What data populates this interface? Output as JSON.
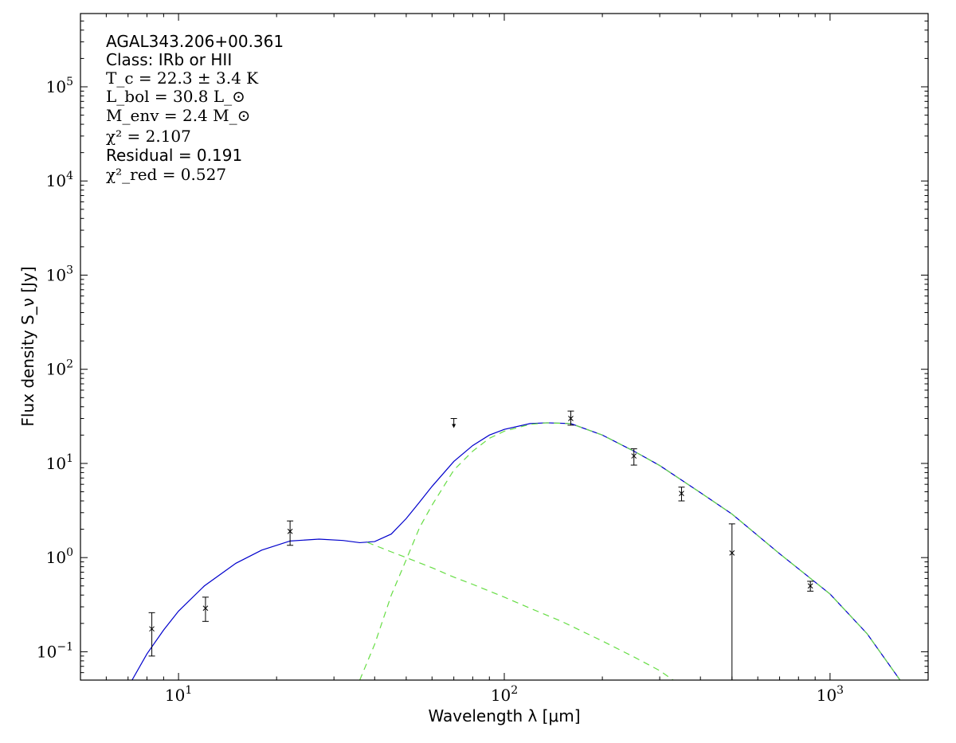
{
  "chart_data": {
    "type": "scatter",
    "xlabel": "Wavelength λ [μm]",
    "ylabel": "Flux density S_ν [Jy]",
    "xscale": "log",
    "yscale": "log",
    "xlim": [
      5,
      2000
    ],
    "ylim": [
      0.05,
      600000
    ],
    "x_ticks": [
      {
        "value": 10,
        "base": "10",
        "exp": "1"
      },
      {
        "value": 100,
        "base": "10",
        "exp": "2"
      },
      {
        "value": 1000,
        "base": "10",
        "exp": "3"
      }
    ],
    "y_ticks": [
      {
        "value": 0.1,
        "base": "10",
        "exp": "−1"
      },
      {
        "value": 1,
        "base": "10",
        "exp": "0"
      },
      {
        "value": 10,
        "base": "10",
        "exp": "1"
      },
      {
        "value": 100,
        "base": "10",
        "exp": "2"
      },
      {
        "value": 1000,
        "base": "10",
        "exp": "3"
      },
      {
        "value": 10000,
        "base": "10",
        "exp": "4"
      },
      {
        "value": 100000,
        "base": "10",
        "exp": "5"
      }
    ],
    "grid": false,
    "annotations": {
      "source_name": "AGAL343.206+00.361",
      "class_text": "Class: IRb or HII",
      "tc_text": "T_c = 22.3 ± 3.4 K",
      "lbol_text": "L_bol = 30.8 L_⊙",
      "menv_text": "M_env = 2.4 M_⊙",
      "chi2_text": "χ² = 2.107",
      "residual_text": "Residual = 0.191",
      "chi2red_text": "χ²_red = 0.527"
    },
    "points": [
      {
        "x": 8.28,
        "y": 0.175,
        "ylo": 0.09,
        "yhi": 0.26
      },
      {
        "x": 12.1,
        "y": 0.29,
        "ylo": 0.21,
        "yhi": 0.38
      },
      {
        "x": 22.0,
        "y": 1.9,
        "ylo": 1.35,
        "yhi": 2.45
      },
      {
        "x": 160,
        "y": 30,
        "ylo": 25.5,
        "yhi": 36
      },
      {
        "x": 250,
        "y": 12,
        "ylo": 9.6,
        "yhi": 14.3
      },
      {
        "x": 350,
        "y": 4.8,
        "ylo": 4.0,
        "yhi": 5.6
      },
      {
        "x": 500,
        "y": 1.12,
        "ylo": 0.05,
        "yhi": 2.28
      },
      {
        "x": 870,
        "y": 0.5,
        "ylo": 0.44,
        "yhi": 0.56
      }
    ],
    "upper_limits": [
      {
        "x": 70,
        "y": 30
      }
    ],
    "series": [
      {
        "style": "solid",
        "color": "#0000cc",
        "x": [
          7.2,
          8,
          9,
          10,
          12,
          15,
          18,
          22,
          27,
          32,
          36,
          40,
          45,
          50,
          55,
          60,
          70,
          80,
          90,
          100,
          120,
          135,
          160,
          200,
          250,
          300,
          400,
          500,
          700,
          1000,
          1300,
          1640
        ],
        "y": [
          0.05,
          0.095,
          0.17,
          0.27,
          0.5,
          0.87,
          1.2,
          1.5,
          1.57,
          1.52,
          1.44,
          1.48,
          1.78,
          2.6,
          3.9,
          5.7,
          10.5,
          15.5,
          20,
          23,
          26.5,
          27,
          26.5,
          20,
          13.5,
          9.5,
          4.9,
          2.9,
          1.1,
          0.41,
          0.155,
          0.05
        ]
      },
      {
        "style": "dashed",
        "color": "#66dd44",
        "x": [
          36,
          40,
          45,
          50,
          55,
          60,
          70,
          80,
          90,
          100,
          120,
          135,
          160,
          200,
          250,
          300,
          400,
          500,
          700,
          1000,
          1300,
          1640
        ],
        "y": [
          0.05,
          0.12,
          0.4,
          0.95,
          2.1,
          3.6,
          8.5,
          13.5,
          18.5,
          22,
          26,
          27,
          26.5,
          20,
          13.5,
          9.5,
          4.9,
          2.9,
          1.1,
          0.41,
          0.155,
          0.05
        ]
      },
      {
        "style": "dashed",
        "color": "#66dd44",
        "x": [
          38,
          45,
          50,
          60,
          70,
          80,
          100,
          120,
          150,
          200,
          250,
          300,
          330
        ],
        "y": [
          1.45,
          1.15,
          1.0,
          0.78,
          0.62,
          0.52,
          0.38,
          0.29,
          0.21,
          0.13,
          0.088,
          0.063,
          0.05
        ]
      }
    ]
  }
}
